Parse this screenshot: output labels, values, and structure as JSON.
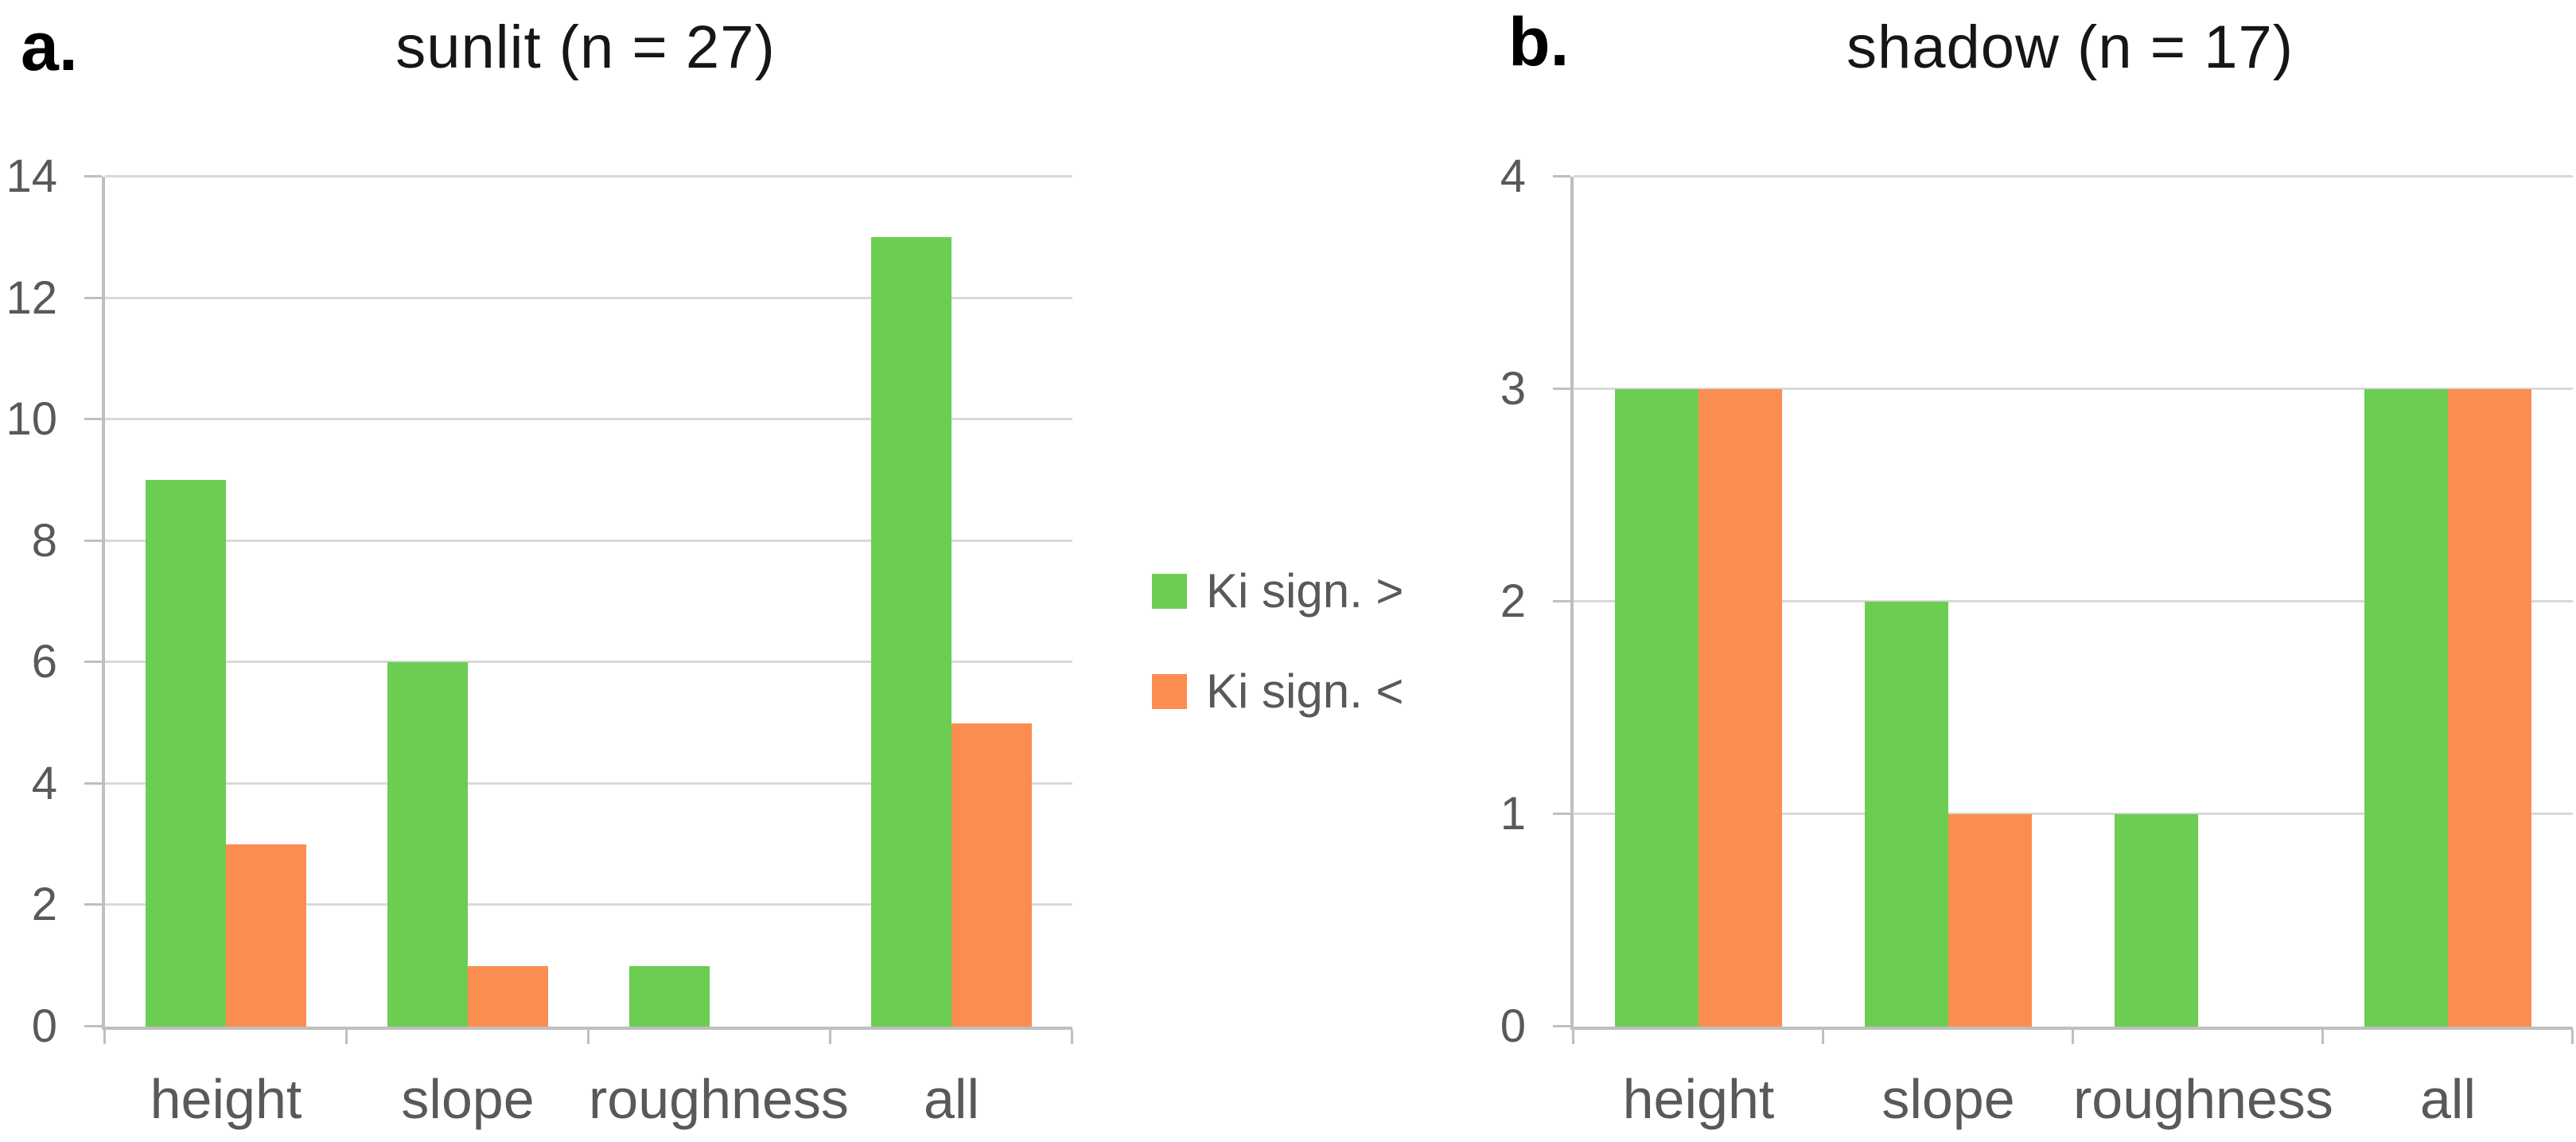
{
  "figure": {
    "background": "#ffffff"
  },
  "colors": {
    "green": "#6BCD52",
    "orange": "#FC8D51",
    "gridline": "#D9D9D9",
    "axis": "#BFBFBF",
    "tick_text": "#595959",
    "title_text": "#161616"
  },
  "legend": {
    "position": "center-between-charts",
    "items": [
      {
        "label": "Ki sign. >",
        "color_key": "green",
        "swatch": "green-square-icon"
      },
      {
        "label": "Ki sign. <",
        "color_key": "orange",
        "swatch": "orange-square-icon"
      }
    ]
  },
  "chart_data": [
    {
      "type": "bar",
      "panel_label": "a.",
      "title": "sunlit (n = 27)",
      "categories": [
        "height",
        "slope",
        "roughness",
        "all"
      ],
      "series": [
        {
          "name": "Ki sign. >",
          "color_key": "green",
          "values": [
            9,
            6,
            1,
            13
          ]
        },
        {
          "name": "Ki sign. <",
          "color_key": "orange",
          "values": [
            3,
            1,
            0,
            5
          ]
        }
      ],
      "xlabel": "",
      "ylabel": "",
      "ylim": [
        0,
        14
      ],
      "ytick_step": 2,
      "grid": true
    },
    {
      "type": "bar",
      "panel_label": "b.",
      "title": "shadow (n = 17)",
      "categories": [
        "height",
        "slope",
        "roughness",
        "all"
      ],
      "series": [
        {
          "name": "Ki sign. >",
          "color_key": "green",
          "values": [
            3,
            2,
            1,
            3
          ]
        },
        {
          "name": "Ki sign. <",
          "color_key": "orange",
          "values": [
            3,
            1,
            0,
            3
          ]
        }
      ],
      "xlabel": "",
      "ylabel": "",
      "ylim": [
        0,
        4
      ],
      "ytick_step": 1,
      "grid": true
    }
  ]
}
